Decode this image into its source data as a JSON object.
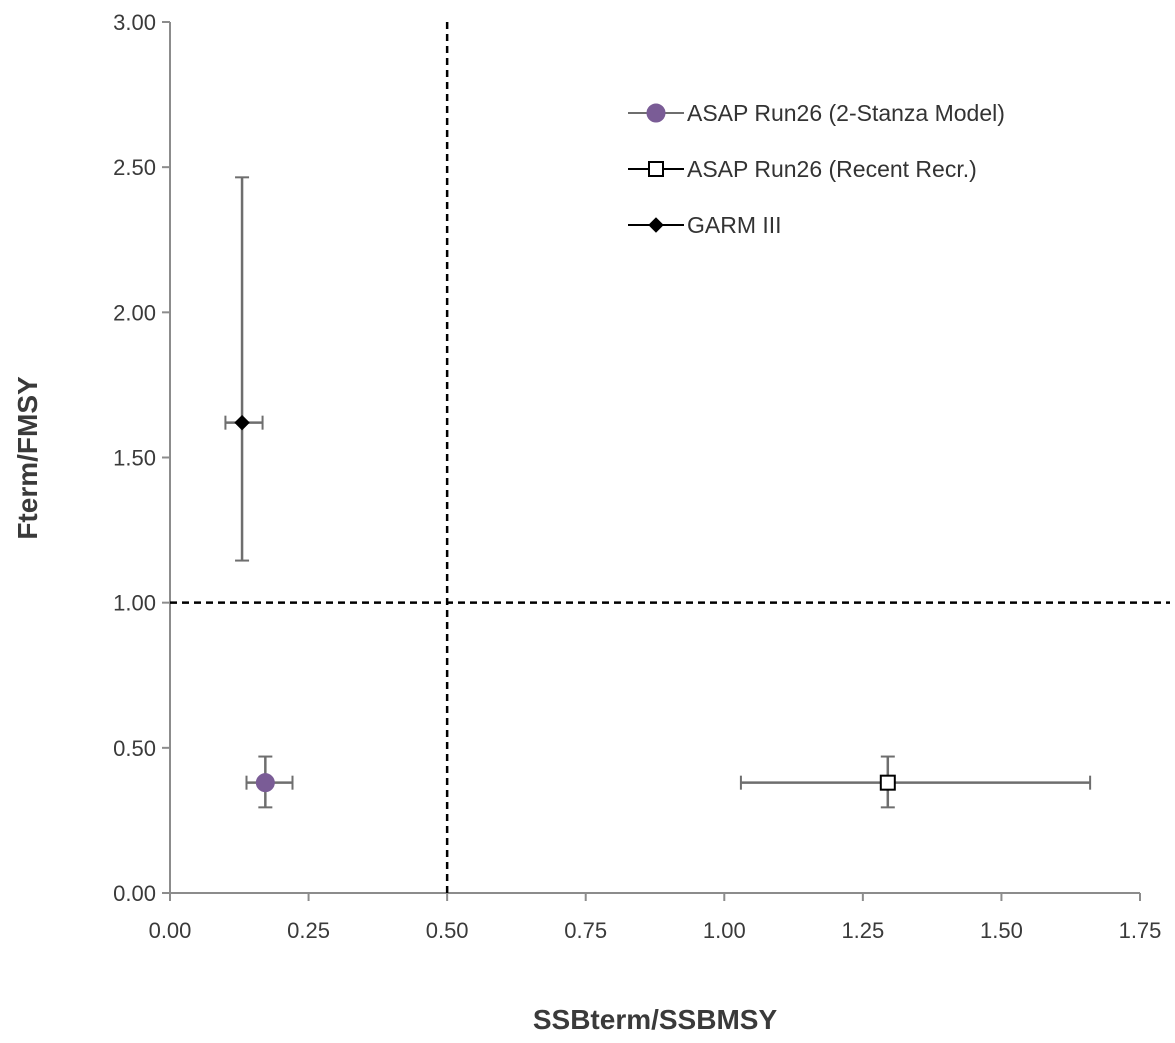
{
  "chart_data": {
    "type": "scatter",
    "xlabel": "SSBterm/SSBMSY",
    "ylabel": "Fterm/FMSY",
    "xlim": [
      0,
      1.75
    ],
    "ylim": [
      0,
      3.0
    ],
    "x_ticks": [
      "0.00",
      "0.25",
      "0.50",
      "0.75",
      "1.00",
      "1.25",
      "1.50",
      "1.75"
    ],
    "y_ticks": [
      "0.00",
      "0.50",
      "1.00",
      "1.50",
      "2.00",
      "2.50",
      "3.00"
    ],
    "grid": false,
    "legend_position": "top-right",
    "reference_lines": [
      {
        "axis": "x",
        "value": 0.5,
        "style": "dashed",
        "color": "#000000"
      },
      {
        "axis": "y",
        "value": 1.0,
        "style": "dashed",
        "color": "#000000"
      }
    ],
    "series": [
      {
        "name": "ASAP Run26 (2-Stanza Model)",
        "marker": "circle",
        "marker_fill": "#7a5c96",
        "marker_stroke": "#7a5c96",
        "x": 0.172,
        "y": 0.38,
        "x_err": [
          0.138,
          0.221
        ],
        "y_err": [
          0.295,
          0.47
        ]
      },
      {
        "name": "ASAP Run26 (Recent Recr.)",
        "marker": "square",
        "marker_fill": "#ffffff",
        "marker_stroke": "#000000",
        "x": 1.295,
        "y": 0.38,
        "x_err": [
          1.03,
          1.66
        ],
        "y_err": [
          0.295,
          0.47
        ]
      },
      {
        "name": "GARM III",
        "marker": "diamond",
        "marker_fill": "#000000",
        "marker_stroke": "#000000",
        "x": 0.13,
        "y": 1.62,
        "x_err": [
          0.1,
          0.167
        ],
        "y_err": [
          1.145,
          2.465
        ]
      }
    ]
  }
}
